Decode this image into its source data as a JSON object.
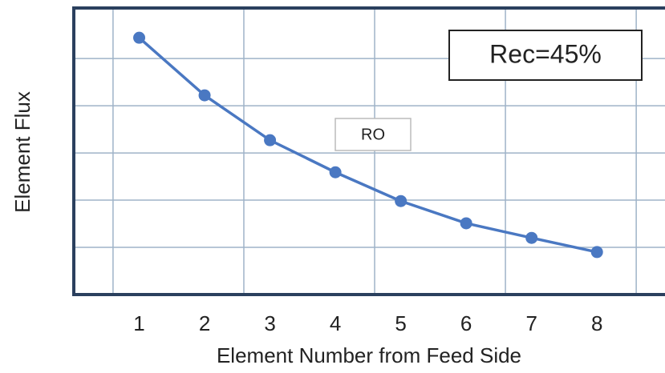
{
  "chart_data": {
    "type": "line",
    "x_label": "Element Number from Feed Side",
    "y_label": "Element Flux",
    "annotations": [
      "Rec=45%",
      "RO"
    ],
    "series": [
      {
        "name": "RO",
        "color": "#4a78c2",
        "x": [
          1,
          2,
          3,
          4,
          5,
          6,
          7,
          8
        ],
        "values": [
          5.44,
          4.22,
          3.27,
          2.59,
          1.98,
          1.51,
          1.2,
          0.9
        ]
      }
    ],
    "xlim": [
      0,
      9.04
    ],
    "xticks": [
      1,
      2,
      3,
      4,
      5,
      6,
      7,
      8
    ],
    "ylim": [
      0,
      6.07
    ],
    "xgrid": [
      0.6,
      2.6,
      4.6,
      6.6,
      8.6
    ],
    "ygrid": [
      1,
      2,
      3,
      4,
      5
    ],
    "grid": true
  }
}
